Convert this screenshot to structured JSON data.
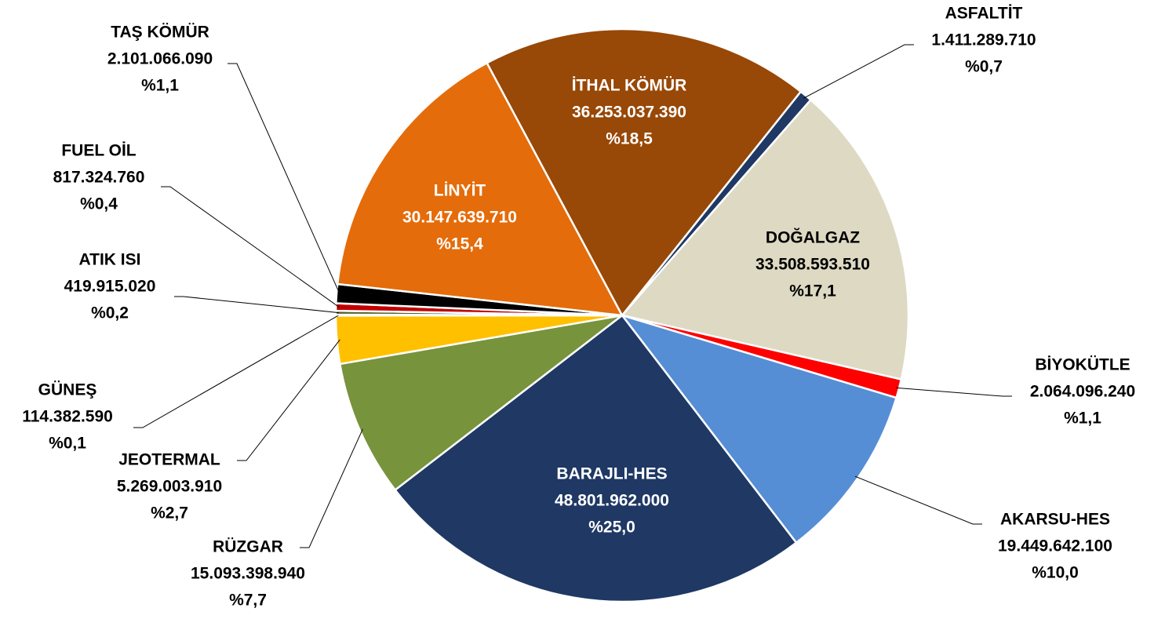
{
  "chart_data": {
    "type": "pie",
    "categories": [
      "ASFALTİT",
      "DOĞALGAZ",
      "BİYOKÜTLE",
      "AKARSU-HES",
      "BARAJLI-HES",
      "RÜZGAR",
      "JEOTERMAL",
      "GÜNEŞ",
      "ATIK ISI",
      "FUEL OİL",
      "TAŞ KÖMÜR",
      "LİNYİT",
      "İTHAL KÖMÜR"
    ],
    "values": [
      1411289710,
      33508593510,
      2064096240,
      19449642100,
      48801962000,
      15093398940,
      5269003910,
      114382590,
      419915020,
      817324760,
      2101066090,
      30147639710,
      36253037390
    ],
    "value_labels": [
      "1.411.289.710",
      "33.508.593.510",
      "2.064.096.240",
      "19.449.642.100",
      "48.801.962.000",
      "15.093.398.940",
      "5.269.003.910",
      "114.382.590",
      "419.915.020",
      "817.324.760",
      "2.101.066.090",
      "30.147.639.710",
      "36.253.037.390"
    ],
    "percent_labels": [
      "%0,7",
      "%17,1",
      "%1,1",
      "%10,0",
      "%25,0",
      "%7,7",
      "%2,7",
      "%0,1",
      "%0,2",
      "%0,4",
      "%1,1",
      "%15,4",
      "%18,5"
    ],
    "colors": [
      "#1f3864",
      "#ddd9c3",
      "#ff0000",
      "#558ed5",
      "#1f3864",
      "#77933c",
      "#ffc000",
      "#c3d69b",
      "#4f6228",
      "#c00000",
      "#000000",
      "#e46c0a",
      "#984807"
    ]
  }
}
